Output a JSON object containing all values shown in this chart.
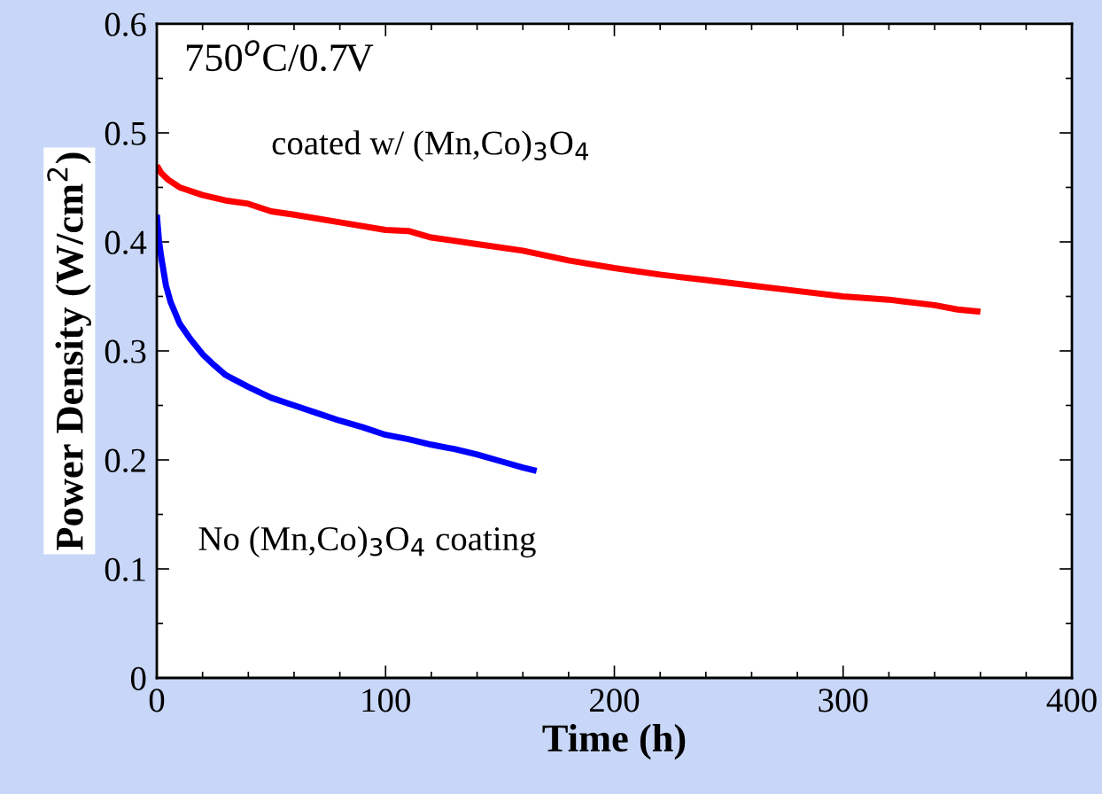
{
  "chart_data": {
    "type": "line",
    "xlabel": "Time (h)",
    "ylabel": "Power Density (W/cm$^{2}$)",
    "annotations": [
      "750$^{o}$C/0.7V"
    ],
    "xlim": [
      0,
      400
    ],
    "xticks": [
      0,
      100,
      200,
      300,
      400
    ],
    "ylim": [
      0,
      0.6
    ],
    "yticks": [
      0,
      0.1,
      0.2,
      0.3,
      0.4,
      0.5,
      0.6
    ],
    "grid": false,
    "legend": false,
    "marker": "none",
    "line_style": "solid",
    "series": [
      {
        "name": "coated w/ (Mn,Co)$_{3}$O$_{4}$",
        "color": "#ff0000",
        "x": [
          0,
          2,
          5,
          10,
          20,
          30,
          40,
          50,
          60,
          80,
          100,
          110,
          120,
          140,
          160,
          180,
          200,
          220,
          240,
          260,
          280,
          300,
          320,
          340,
          350,
          360
        ],
        "values": [
          0.47,
          0.463,
          0.457,
          0.45,
          0.443,
          0.438,
          0.435,
          0.428,
          0.425,
          0.418,
          0.411,
          0.41,
          0.404,
          0.398,
          0.392,
          0.383,
          0.376,
          0.37,
          0.365,
          0.36,
          0.355,
          0.35,
          0.347,
          0.342,
          0.338,
          0.336
        ]
      },
      {
        "name": "No (Mn,Co)$_{3}$O$_{4}$ coating",
        "color": "#0000ff",
        "x": [
          0,
          1,
          2,
          4,
          6,
          10,
          15,
          20,
          25,
          30,
          40,
          50,
          60,
          70,
          80,
          90,
          100,
          110,
          120,
          130,
          140,
          150,
          160,
          166
        ],
        "values": [
          0.425,
          0.4,
          0.385,
          0.36,
          0.345,
          0.325,
          0.31,
          0.297,
          0.287,
          0.278,
          0.267,
          0.257,
          0.25,
          0.243,
          0.236,
          0.23,
          0.223,
          0.219,
          0.214,
          0.21,
          0.205,
          0.199,
          0.193,
          0.19
        ]
      }
    ]
  }
}
